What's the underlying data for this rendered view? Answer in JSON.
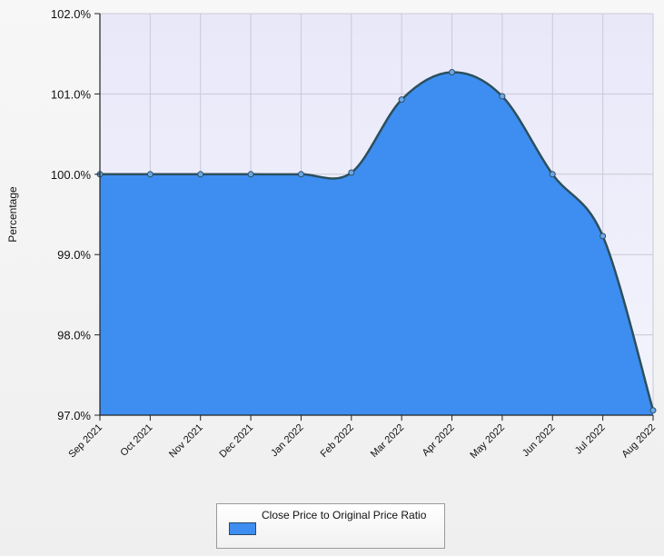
{
  "chart_data": {
    "type": "area",
    "title": "",
    "xlabel": "",
    "ylabel": "Percentage",
    "categories": [
      "Sep 2021",
      "Oct 2021",
      "Nov 2021",
      "Dec 2021",
      "Jan 2022",
      "Feb 2022",
      "Mar 2022",
      "Apr 2022",
      "May 2022",
      "Jun 2022",
      "Jul 2022",
      "Aug 2022"
    ],
    "y_ticks": [
      "97.0%",
      "98.0%",
      "99.0%",
      "100.0%",
      "101.0%",
      "102.0%"
    ],
    "ylim": [
      97.0,
      102.0
    ],
    "grid": true,
    "legend_position": "bottom-center",
    "series": [
      {
        "name": "Close Price to Original Price Ratio",
        "values": [
          100.0,
          100.0,
          100.0,
          100.0,
          100.0,
          100.02,
          100.93,
          101.27,
          100.97,
          100.0,
          99.23,
          97.06
        ],
        "fill_color": "#3d8ef0",
        "line_color": "#2c4f5e"
      }
    ],
    "plot_background": "#ececfa"
  }
}
